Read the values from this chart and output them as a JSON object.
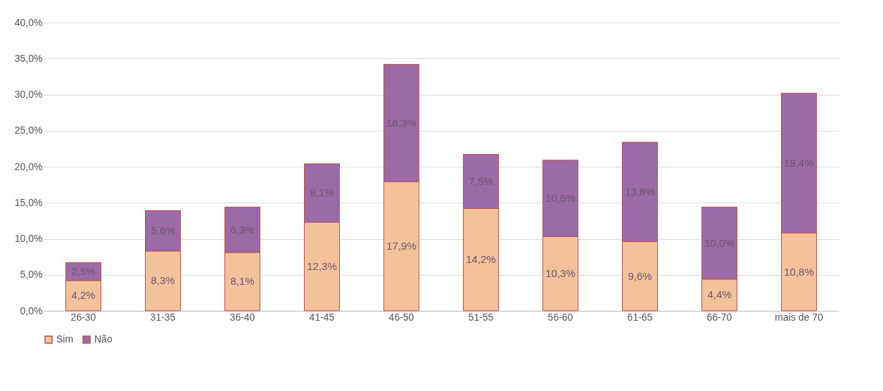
{
  "chart_data": {
    "type": "bar",
    "stacked": true,
    "categories": [
      "26-30",
      "31-35",
      "36-40",
      "41-45",
      "46-50",
      "51-55",
      "56-60",
      "61-65",
      "66-70",
      "mais de 70"
    ],
    "series": [
      {
        "name": "Sim",
        "color": "#f4c29a",
        "values": [
          4.2,
          8.3,
          8.1,
          12.3,
          17.9,
          14.2,
          10.3,
          9.6,
          4.4,
          10.8
        ],
        "value_labels": [
          "4,2%",
          "8,3%",
          "8,1%",
          "12,3%",
          "17,9%",
          "14,2%",
          "10,3%",
          "9,6%",
          "4,4%",
          "10,8%"
        ]
      },
      {
        "name": "Não",
        "color": "#9c6aa6",
        "values": [
          2.5,
          5.6,
          6.3,
          8.1,
          16.3,
          7.5,
          10.6,
          13.8,
          10.0,
          19.4
        ],
        "value_labels": [
          "2,5%",
          "5,6%",
          "6,3%",
          "8,1%",
          "16,3%",
          "7,5%",
          "10,6%",
          "13,8%",
          "10,0%",
          "19,4%"
        ]
      }
    ],
    "ylim": [
      0,
      40
    ],
    "yticks": [
      {
        "value": 0,
        "label": "0,0%"
      },
      {
        "value": 5,
        "label": "5,0%"
      },
      {
        "value": 10,
        "label": "10,0%"
      },
      {
        "value": 15,
        "label": "15,0%"
      },
      {
        "value": 20,
        "label": "20,0%"
      },
      {
        "value": 25,
        "label": "25,0%"
      },
      {
        "value": 30,
        "label": "30,0%"
      },
      {
        "value": 35,
        "label": "35,0%"
      },
      {
        "value": 40,
        "label": "40,0%"
      }
    ],
    "grid": "y",
    "legend": "bottom"
  }
}
